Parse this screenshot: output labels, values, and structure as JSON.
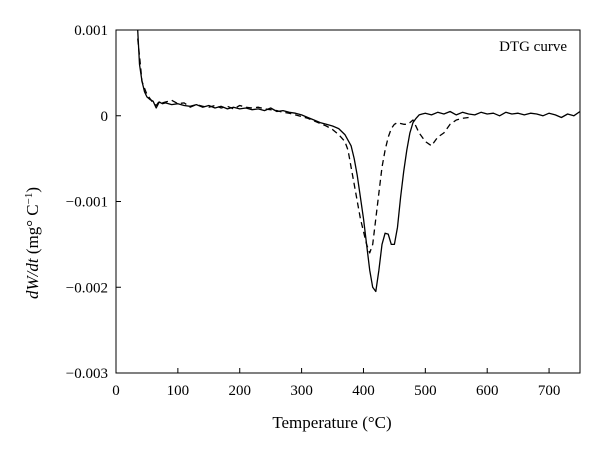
{
  "chart_data": {
    "type": "line",
    "title": "",
    "xlabel": "Temperature (°C)",
    "ylabel_parts": {
      "var": "dW/dt",
      "unit_open": " (mg° C",
      "unit_exp": "−1",
      "unit_close": ")"
    },
    "annotation": "DTG curve",
    "xlim": [
      0,
      750
    ],
    "ylim": [
      -0.003,
      0.001
    ],
    "grid": false,
    "x_ticks": [
      0,
      100,
      200,
      300,
      400,
      500,
      600,
      700
    ],
    "y_ticks": [
      0.001,
      0,
      -0.001,
      -0.002,
      -0.003
    ],
    "x_tick_labels": [
      "0",
      "100",
      "200",
      "300",
      "400",
      "500",
      "600",
      "700"
    ],
    "y_tick_labels": [
      "0.001",
      "0",
      "−0.001",
      "−0.002",
      "−0.003"
    ],
    "series": [
      {
        "style": "solid",
        "x": [
          35,
          38,
          42,
          46,
          50,
          55,
          60,
          65,
          70,
          75,
          80,
          90,
          100,
          110,
          120,
          130,
          140,
          150,
          160,
          170,
          180,
          190,
          200,
          210,
          220,
          230,
          240,
          250,
          260,
          270,
          280,
          290,
          300,
          310,
          320,
          330,
          340,
          350,
          360,
          370,
          380,
          385,
          390,
          395,
          400,
          405,
          410,
          415,
          420,
          425,
          430,
          435,
          440,
          445,
          450,
          455,
          460,
          465,
          470,
          475,
          480,
          485,
          490,
          495,
          500,
          510,
          520,
          530,
          540,
          550,
          560,
          570,
          580,
          590,
          600,
          610,
          620,
          630,
          640,
          650,
          660,
          670,
          680,
          690,
          700,
          710,
          720,
          730,
          740,
          750
        ],
        "y": [
          0.001,
          0.0006,
          0.0004,
          0.00028,
          0.00022,
          0.00019,
          0.00017,
          9e-05,
          0.00016,
          0.00014,
          0.00015,
          0.00013,
          0.00014,
          0.00012,
          0.00011,
          0.00013,
          0.0001,
          0.00012,
          9e-05,
          0.00011,
          8e-05,
          0.0001,
          8e-05,
          9e-05,
          7e-05,
          8e-05,
          6e-05,
          9e-05,
          5e-05,
          6e-05,
          4e-05,
          3e-05,
          1e-05,
          -2e-05,
          -5e-05,
          -8e-05,
          -0.0001,
          -0.00012,
          -0.00015,
          -0.00022,
          -0.00035,
          -0.0005,
          -0.0007,
          -0.00095,
          -0.0012,
          -0.0015,
          -0.0018,
          -0.002,
          -0.00205,
          -0.0018,
          -0.0015,
          -0.00137,
          -0.00138,
          -0.0015,
          -0.0015,
          -0.0013,
          -0.00095,
          -0.00065,
          -0.0004,
          -0.0002,
          -8e-05,
          -3e-05,
          1e-05,
          2e-05,
          3e-05,
          1e-05,
          4e-05,
          2e-05,
          5e-05,
          1e-05,
          4e-05,
          2e-05,
          1e-05,
          4e-05,
          2e-05,
          3e-05,
          0.0,
          4e-05,
          2e-05,
          3e-05,
          1e-05,
          3e-05,
          2e-05,
          0.0,
          3e-05,
          1e-05,
          -2e-05,
          2e-05,
          0.0,
          5e-05
        ]
      },
      {
        "style": "dashed",
        "x": [
          35,
          38,
          42,
          46,
          50,
          55,
          60,
          65,
          70,
          75,
          80,
          90,
          100,
          110,
          120,
          130,
          140,
          150,
          160,
          170,
          180,
          190,
          200,
          210,
          220,
          230,
          240,
          250,
          260,
          270,
          280,
          290,
          300,
          310,
          320,
          330,
          340,
          350,
          360,
          370,
          375,
          380,
          385,
          390,
          395,
          400,
          405,
          410,
          415,
          420,
          425,
          430,
          435,
          440,
          445,
          450,
          455,
          460,
          465,
          470,
          475,
          480,
          490,
          500,
          510,
          520,
          530,
          540,
          550,
          560,
          570
        ],
        "y": [
          0.0009,
          0.0007,
          0.0004,
          0.00032,
          0.00025,
          0.0002,
          0.00015,
          0.00012,
          0.00017,
          0.00015,
          0.00016,
          0.00018,
          0.00014,
          0.00015,
          0.0001,
          0.00013,
          0.00011,
          0.0001,
          0.00012,
          9e-05,
          0.00011,
          8e-05,
          0.00012,
          0.0001,
          9e-05,
          0.0001,
          8e-05,
          7e-05,
          6e-05,
          4e-05,
          3e-05,
          1e-05,
          -1e-05,
          -3e-05,
          -6e-05,
          -9e-05,
          -0.00012,
          -0.00016,
          -0.00022,
          -0.0003,
          -0.0004,
          -0.0006,
          -0.0008,
          -0.001,
          -0.0012,
          -0.00135,
          -0.0015,
          -0.0016,
          -0.0015,
          -0.0012,
          -0.0009,
          -0.0006,
          -0.0004,
          -0.00025,
          -0.00015,
          -0.0001,
          -8e-05,
          -9e-05,
          -0.0001,
          -0.0001,
          -8e-05,
          -5e-05,
          -0.0002,
          -0.0003,
          -0.00035,
          -0.00025,
          -0.0002,
          -0.0001,
          -5e-05,
          -3e-05,
          -2e-05
        ]
      }
    ]
  }
}
